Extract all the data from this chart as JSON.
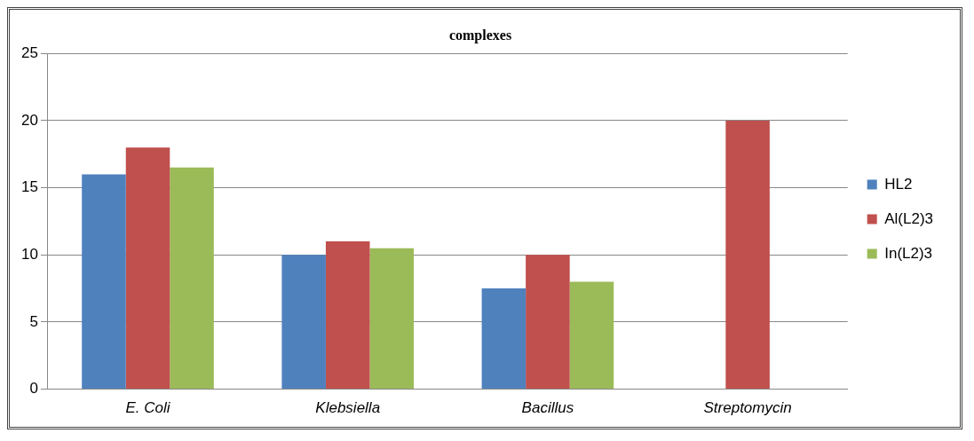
{
  "chart_data": {
    "type": "bar",
    "title": "complexes",
    "categories": [
      "E. Coli",
      "Klebsiella",
      "Bacillus",
      "Streptomycin"
    ],
    "series": [
      {
        "name": "HL2",
        "color": "#4f81bd",
        "values": [
          16,
          10,
          7.5,
          null
        ]
      },
      {
        "name": "Al(L2)3",
        "color": "#c0504d",
        "values": [
          18,
          11,
          10,
          20
        ]
      },
      {
        "name": "In(L2)3",
        "color": "#9bbb59",
        "values": [
          16.5,
          10.5,
          8,
          null
        ]
      }
    ],
    "ylim": [
      0,
      25
    ],
    "yticks": [
      0,
      5,
      10,
      15,
      20,
      25
    ],
    "grid": "y",
    "legend": "right"
  }
}
